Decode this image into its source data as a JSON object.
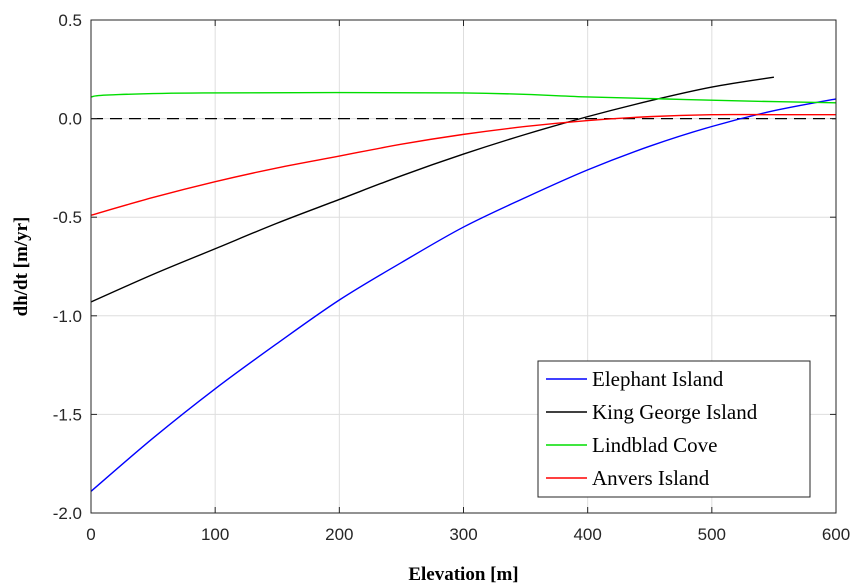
{
  "chart_data": {
    "type": "line",
    "title": "",
    "xlabel": "Elevation [m]",
    "ylabel": "dh/dt [m/yr]",
    "xlim": [
      0,
      600
    ],
    "ylim": [
      -2.0,
      0.5
    ],
    "xticks": [
      0,
      100,
      200,
      300,
      400,
      500,
      600
    ],
    "xtick_labels": [
      "0",
      "100",
      "200",
      "300",
      "400",
      "500",
      "600"
    ],
    "yticks": [
      -2.0,
      -1.5,
      -1.0,
      -0.5,
      0.0,
      0.5
    ],
    "ytick_labels": [
      "-2.0",
      "-1.5",
      "-1.0",
      "-0.5",
      "0.0",
      "0.5"
    ],
    "grid": true,
    "legend_position": "bottom-right",
    "reference_line": {
      "y": 0.0,
      "style": "dashed",
      "color": "#000000"
    },
    "series": [
      {
        "name": "Elephant Island",
        "color": "#0000ff",
        "x": [
          0,
          50,
          100,
          150,
          200,
          250,
          300,
          350,
          400,
          450,
          500,
          550,
          600
        ],
        "y": [
          -1.89,
          -1.62,
          -1.37,
          -1.14,
          -0.92,
          -0.73,
          -0.55,
          -0.4,
          -0.26,
          -0.14,
          -0.04,
          0.04,
          0.1
        ]
      },
      {
        "name": "King George Island",
        "color": "#000000",
        "x": [
          0,
          50,
          100,
          150,
          200,
          250,
          300,
          350,
          400,
          450,
          500,
          550
        ],
        "y": [
          -0.93,
          -0.79,
          -0.66,
          -0.53,
          -0.41,
          -0.29,
          -0.18,
          -0.08,
          0.01,
          0.09,
          0.16,
          0.21
        ]
      },
      {
        "name": "Lindblad Cove",
        "color": "#00dd00",
        "x": [
          0,
          15,
          90,
          300,
          400,
          460,
          520,
          600
        ],
        "y": [
          0.11,
          0.12,
          0.13,
          0.13,
          0.11,
          0.1,
          0.09,
          0.08
        ]
      },
      {
        "name": "Anvers Island",
        "color": "#ff0000",
        "x": [
          0,
          50,
          100,
          150,
          200,
          250,
          300,
          350,
          400,
          450,
          500,
          550,
          600
        ],
        "y": [
          -0.49,
          -0.4,
          -0.32,
          -0.25,
          -0.19,
          -0.13,
          -0.08,
          -0.04,
          -0.01,
          0.01,
          0.02,
          0.02,
          0.02
        ]
      }
    ]
  }
}
